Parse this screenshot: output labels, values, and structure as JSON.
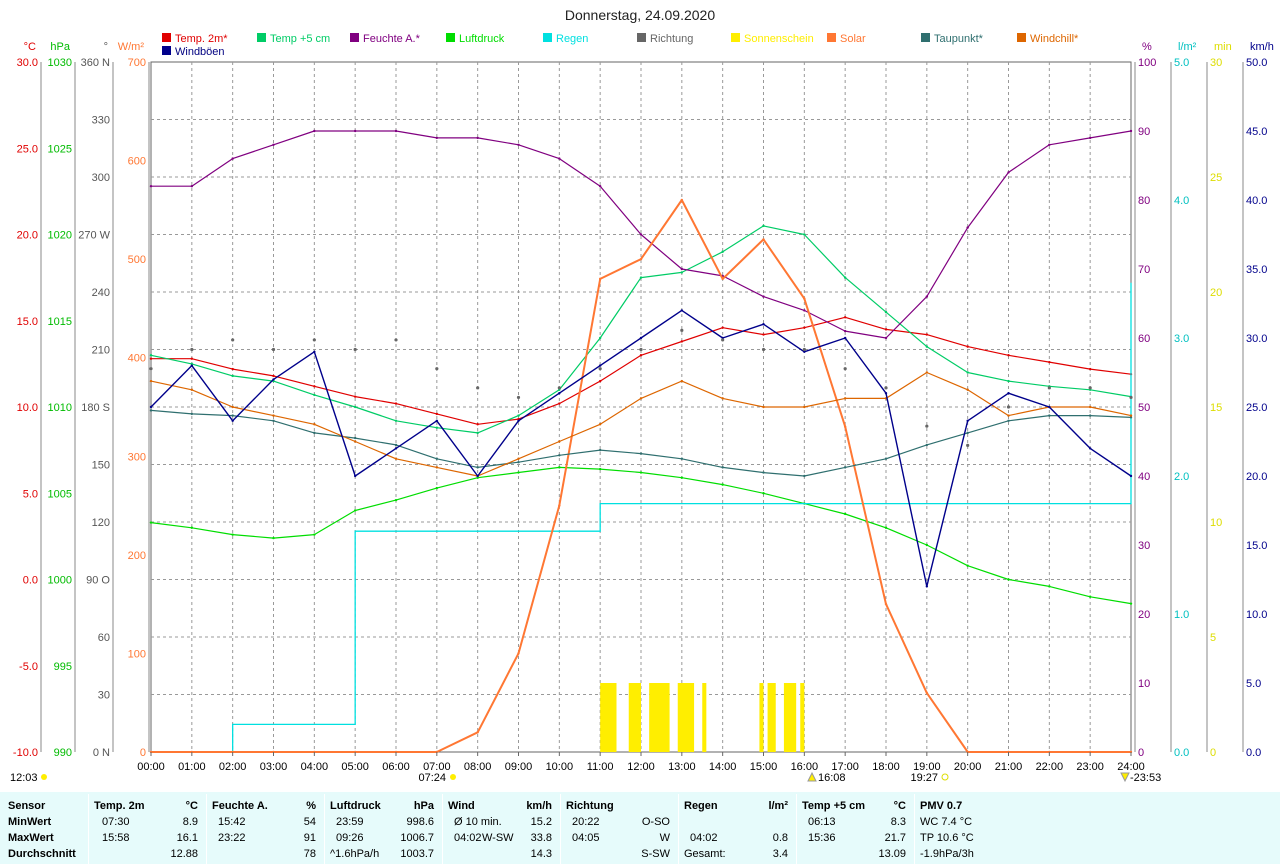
{
  "window": {
    "title": "Donnerstag, 24.09.2020"
  },
  "colors": {
    "temp": "#e00000",
    "temp5": "#00cc66",
    "feuchte": "#800080",
    "luftdruck": "#00dd00",
    "regen": "#00e0e0",
    "richtung": "#666666",
    "sonnenschein": "#ffee00",
    "solar": "#ff7733",
    "taupunkt": "#2f6f6f",
    "windchill": "#dd6600",
    "windboeen": "#00008b",
    "stats_bg": "#e6fbfb"
  },
  "legend": [
    {
      "label": "Temp. 2m*",
      "color": "#e00000"
    },
    {
      "label": "Temp +5 cm",
      "color": "#00cc66"
    },
    {
      "label": "Feuchte A.*",
      "color": "#800080"
    },
    {
      "label": "Luftdruck",
      "color": "#00dd00"
    },
    {
      "label": "Regen",
      "color": "#00e0e0"
    },
    {
      "label": "Richtung",
      "color": "#666666"
    },
    {
      "label": "Sonnenschein",
      "color": "#ffee00"
    },
    {
      "label": "Solar",
      "color": "#ff7733"
    },
    {
      "label": "Taupunkt*",
      "color": "#2f6f6f"
    },
    {
      "label": "Windchill*",
      "color": "#dd6600"
    },
    {
      "label": "Windböen",
      "color": "#00008b"
    }
  ],
  "axes": {
    "temp": {
      "unit": "°C",
      "ticks": [
        "30.0",
        "25.0",
        "20.0",
        "15.0",
        "10.0",
        "5.0",
        "0.0",
        "-5.0",
        "-10.0"
      ],
      "range": [
        -10,
        30
      ]
    },
    "pressure": {
      "unit": "hPa",
      "ticks": [
        "1030",
        "1025",
        "1020",
        "1015",
        "1010",
        "1005",
        "1000",
        "995",
        "990"
      ],
      "range": [
        990,
        1030
      ]
    },
    "direction": {
      "unit": "°",
      "ticks": [
        "360 N",
        "330",
        "300",
        "270 W",
        "240",
        "210",
        "180 S",
        "150",
        "120",
        "90 O",
        "60",
        "30",
        "0 N"
      ],
      "range": [
        0,
        360
      ]
    },
    "solar": {
      "unit": "W/m²",
      "ticks": [
        "700",
        "600",
        "500",
        "400",
        "300",
        "200",
        "100",
        "0"
      ],
      "range": [
        0,
        700
      ]
    },
    "humidity": {
      "unit": "%",
      "ticks": [
        "100",
        "90",
        "80",
        "70",
        "60",
        "50",
        "40",
        "30",
        "20",
        "10",
        "0"
      ],
      "range": [
        0,
        100
      ]
    },
    "rain": {
      "unit": "l/m²",
      "ticks": [
        "5.0",
        "4.0",
        "3.0",
        "2.0",
        "1.0",
        "0.0"
      ],
      "range": [
        0,
        5
      ]
    },
    "sunshine": {
      "unit": "min",
      "ticks": [
        "30",
        "25",
        "20",
        "15",
        "10",
        "5",
        "0"
      ],
      "range": [
        0,
        30
      ]
    },
    "wind": {
      "unit": "km/h",
      "ticks": [
        "50.0",
        "45.0",
        "40.0",
        "35.0",
        "30.0",
        "25.0",
        "20.0",
        "15.0",
        "10.0",
        "5.0",
        "0.0"
      ],
      "range": [
        0,
        50
      ]
    },
    "time": {
      "ticks": [
        "00:00",
        "01:00",
        "02:00",
        "03:00",
        "04:00",
        "05:00",
        "06:00",
        "07:00",
        "08:00",
        "09:00",
        "10:00",
        "11:00",
        "12:00",
        "13:00",
        "14:00",
        "15:00",
        "16:00",
        "17:00",
        "18:00",
        "19:00",
        "20:00",
        "21:00",
        "22:00",
        "23:00",
        "24:00"
      ]
    }
  },
  "time_marks": {
    "left": "12:03",
    "sunrise": "07:24",
    "noon": "16:08",
    "sunset": "19:27",
    "right": "-23:53"
  },
  "chart_data": {
    "type": "line",
    "title": "Donnerstag, 24.09.2020",
    "x": [
      0,
      1,
      2,
      3,
      4,
      5,
      6,
      7,
      8,
      9,
      10,
      11,
      12,
      13,
      14,
      15,
      16,
      17,
      18,
      19,
      20,
      21,
      22,
      23,
      24
    ],
    "xlim": [
      0,
      24
    ],
    "series": [
      {
        "name": "Temp. 2m*",
        "axis": "temp",
        "values": [
          12.8,
          12.8,
          12.2,
          11.8,
          11.2,
          10.6,
          10.2,
          9.6,
          9.0,
          9.3,
          10.2,
          11.5,
          13.0,
          13.8,
          14.6,
          14.2,
          14.6,
          15.2,
          14.5,
          14.2,
          13.5,
          13.0,
          12.6,
          12.2,
          11.9
        ]
      },
      {
        "name": "Temp +5 cm",
        "axis": "temp",
        "values": [
          13.0,
          12.5,
          11.8,
          11.5,
          10.7,
          10.0,
          9.2,
          8.8,
          8.5,
          9.5,
          11.0,
          14.0,
          17.5,
          17.8,
          19.0,
          20.5,
          20.0,
          17.5,
          15.5,
          13.5,
          12.0,
          11.5,
          11.2,
          11.0,
          10.6
        ]
      },
      {
        "name": "Feuchte A.*",
        "axis": "humidity",
        "values": [
          82,
          82,
          86,
          88,
          90,
          90,
          90,
          89,
          89,
          88,
          86,
          82,
          75,
          70,
          69,
          66,
          64,
          61,
          60,
          66,
          76,
          84,
          88,
          89,
          90
        ]
      },
      {
        "name": "Luftdruck",
        "axis": "pressure",
        "values": [
          1003.3,
          1003.0,
          1002.6,
          1002.4,
          1002.6,
          1004.0,
          1004.6,
          1005.3,
          1005.9,
          1006.2,
          1006.5,
          1006.4,
          1006.2,
          1005.9,
          1005.5,
          1005.0,
          1004.4,
          1003.8,
          1003.0,
          1002.0,
          1000.8,
          1000.0,
          999.6,
          999.0,
          998.6
        ]
      },
      {
        "name": "Regen",
        "axis": "rain",
        "values": [
          0.0,
          0.0,
          0.2,
          0.2,
          0.2,
          1.6,
          1.6,
          1.6,
          1.6,
          1.6,
          1.6,
          1.8,
          1.8,
          1.8,
          1.8,
          1.8,
          1.8,
          1.8,
          1.8,
          1.8,
          1.8,
          1.8,
          1.8,
          1.8,
          3.4
        ]
      },
      {
        "name": "Solar",
        "axis": "solar",
        "values": [
          0,
          0,
          0,
          0,
          0,
          0,
          0,
          0,
          20,
          100,
          250,
          480,
          500,
          560,
          480,
          520,
          460,
          330,
          150,
          60,
          0,
          0,
          0,
          0,
          0
        ]
      },
      {
        "name": "Taupunkt*",
        "axis": "temp",
        "values": [
          9.8,
          9.6,
          9.5,
          9.2,
          8.5,
          8.2,
          7.8,
          7.0,
          6.5,
          6.8,
          7.2,
          7.5,
          7.3,
          7.0,
          6.5,
          6.2,
          6.0,
          6.5,
          7.0,
          7.8,
          8.5,
          9.2,
          9.5,
          9.5,
          9.4
        ]
      },
      {
        "name": "Windchill*",
        "axis": "temp",
        "values": [
          11.5,
          11.0,
          10.0,
          9.5,
          9.0,
          8.0,
          7.0,
          6.5,
          6.0,
          7.0,
          8.0,
          9.0,
          10.5,
          11.5,
          10.5,
          10.0,
          10.0,
          10.5,
          10.5,
          12.0,
          11.0,
          9.5,
          10.0,
          10.0,
          9.5
        ]
      },
      {
        "name": "Windböen",
        "axis": "wind",
        "values": [
          25,
          28,
          24,
          27,
          29,
          20,
          22,
          24,
          20,
          24,
          26,
          28,
          30,
          32,
          30,
          31,
          29,
          30,
          26,
          12,
          24,
          26,
          25,
          22,
          20
        ]
      },
      {
        "name": "Richtung",
        "axis": "direction",
        "values": [
          200,
          210,
          215,
          210,
          215,
          210,
          215,
          200,
          190,
          185,
          190,
          200,
          210,
          220,
          215,
          210,
          210,
          200,
          190,
          170,
          160,
          180,
          190,
          190,
          185
        ]
      }
    ],
    "sunshine_periods": [
      [
        11.0,
        11.4
      ],
      [
        11.7,
        12.0
      ],
      [
        12.2,
        12.7
      ],
      [
        12.9,
        13.3
      ],
      [
        13.5,
        13.6
      ],
      [
        14.9,
        15.0
      ],
      [
        15.1,
        15.3
      ],
      [
        15.5,
        15.8
      ],
      [
        15.9,
        16.0
      ]
    ]
  },
  "stats": {
    "header": {
      "sensor": "Sensor",
      "temp": "Temp. 2m",
      "temp_unit": "°C",
      "feuchte": "Feuchte A.",
      "feuchte_unit": "%",
      "luftdruck": "Luftdruck",
      "luftdruck_unit": "hPa",
      "wind": "Wind",
      "wind_unit": "km/h",
      "richtung": "Richtung",
      "regen": "Regen",
      "regen_unit": "l/m²",
      "temp5": "Temp +5 cm",
      "temp5_unit": "°C",
      "pmv": "PMV 0.7"
    },
    "rows": {
      "min": "MinWert",
      "max": "MaxWert",
      "avg": "Durchschnitt"
    },
    "temp": {
      "min_time": "07:30",
      "min": "8.9",
      "max_time": "15:58",
      "max": "16.1",
      "avg": "12.88"
    },
    "feuchte": {
      "min_time": "15:42",
      "min": "54",
      "max_time": "23:22",
      "max": "91",
      "avg": "78"
    },
    "luftdruck": {
      "min_time": "23:59",
      "min": "998.6",
      "max_time": "09:26",
      "max": "1006.7",
      "trend": "^1.6hPa/h",
      "avg": "1003.7"
    },
    "wind": {
      "min_label": "Ø 10 min.",
      "min": "15.2",
      "max_time": "04:02",
      "max_dir": "W-SW",
      "max": "33.8",
      "avg": "14.3"
    },
    "richtung": {
      "time1": "20:22",
      "dir1": "O-SO",
      "time2": "04:05",
      "dir2": "W",
      "dir_avg": "S-SW"
    },
    "regen": {
      "time": "04:02",
      "max": "0.8",
      "total_label": "Gesamt:",
      "total": "3.4"
    },
    "temp5": {
      "min_time": "06:13",
      "min": "8.3",
      "max_time": "15:36",
      "max": "21.7",
      "avg": "13.09"
    },
    "pmv": {
      "wc": "WC 7.4 °C",
      "tp": "TP 10.6 °C",
      "trend": "-1.9hPa/3h"
    }
  }
}
